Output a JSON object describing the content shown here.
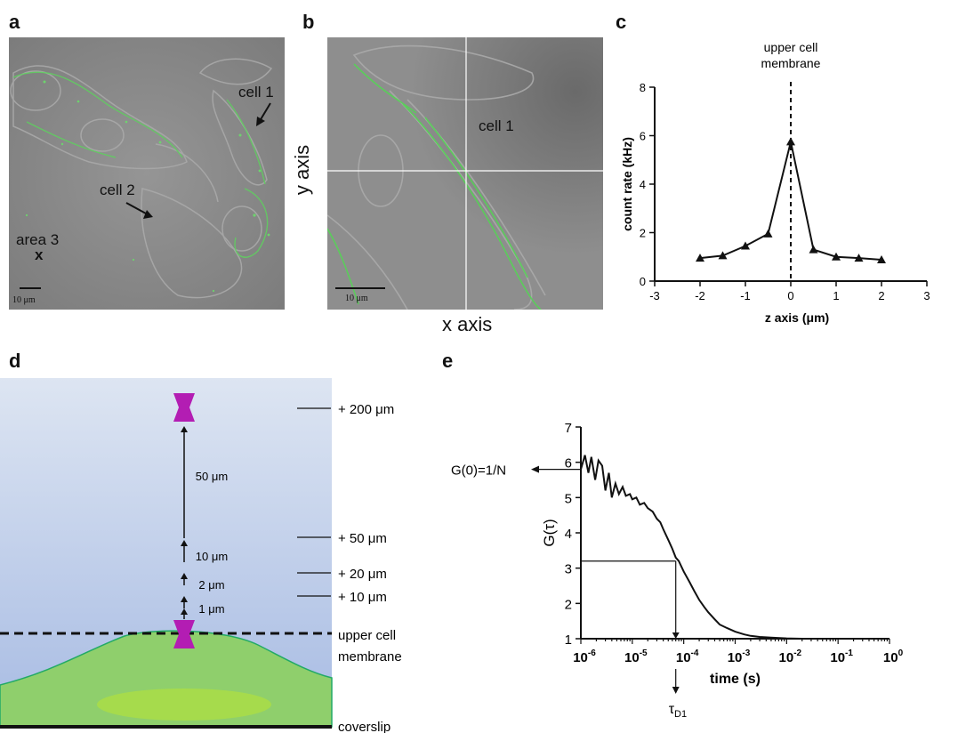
{
  "panels": {
    "a": {
      "letter": "a",
      "cell1_label": "cell 1",
      "cell2_label": "cell 2",
      "area3_label": "area 3",
      "area3_marker": "x",
      "scalebar_label": "10 μm"
    },
    "b": {
      "letter": "b",
      "cell1_label": "cell 1",
      "y_axis_label": "y axis",
      "x_axis_label": "x axis",
      "scalebar_label": "10 μm"
    },
    "c": {
      "letter": "c",
      "annotation_line1": "upper cell",
      "annotation_line2": "membrane"
    },
    "d": {
      "letter": "d",
      "levels": [
        "+ 200 μm",
        "+ 50 μm",
        "+ 20 μm",
        "+ 10 μm"
      ],
      "steps": [
        "50 μm",
        "10 μm",
        "2 μm",
        "1 μm"
      ],
      "membrane_line1": "upper cell",
      "membrane_line2": "membrane",
      "coverslip_label": "coverslip",
      "colors": {
        "probe": "#b31db3",
        "cell": "#8fcf6c",
        "nucleus": "#a6db4c",
        "sky_top": "#dde5f2",
        "sky_bottom": "#a7bbe3"
      }
    },
    "e": {
      "letter": "e",
      "g0_label": "G(0)=1/N",
      "tau_label": "τ",
      "tau_subscript": "D1"
    }
  },
  "chart_data": [
    {
      "type": "line",
      "panel": "c",
      "x": [
        -2,
        -1.5,
        -1,
        -0.5,
        0,
        0.5,
        1,
        1.5,
        2
      ],
      "y": [
        0.95,
        1.05,
        1.45,
        1.95,
        5.75,
        1.3,
        1.0,
        0.95,
        0.88
      ],
      "marker": "triangle",
      "xlabel": "z axis (μm)",
      "ylabel": "count rate  (kHz)",
      "xlim": [
        -3,
        3
      ],
      "ylim": [
        0,
        8
      ],
      "xticks": [
        "-3",
        "-2",
        "-1",
        "0",
        "1",
        "2",
        "3"
      ],
      "yticks": [
        "0",
        "2",
        "4",
        "6",
        "8"
      ],
      "reference_line_x": 0
    },
    {
      "type": "line",
      "panel": "e",
      "xscale": "log",
      "x": [
        1e-06,
        1.2e-06,
        1.4e-06,
        1.6e-06,
        1.9e-06,
        2.2e-06,
        2.6e-06,
        3e-06,
        3.5e-06,
        4e-06,
        4.7e-06,
        5.5e-06,
        6.5e-06,
        7.5e-06,
        9e-06,
        1e-05,
        1.2e-05,
        1.4e-05,
        1.7e-05,
        2e-05,
        2.5e-05,
        3e-05,
        3.5e-05,
        4e-05,
        5e-05,
        6e-05,
        7e-05,
        8e-05,
        0.0001,
        0.00013,
        0.00016,
        0.0002,
        0.00025,
        0.0003,
        0.0004,
        0.0005,
        0.0007,
        0.001,
        0.0015,
        0.002,
        0.003,
        0.005,
        0.01,
        0.02,
        0.05,
        0.1,
        1
      ],
      "y": [
        5.8,
        6.2,
        5.7,
        6.15,
        5.5,
        6.05,
        5.9,
        5.2,
        5.7,
        5.0,
        5.4,
        5.1,
        5.3,
        5.05,
        5.1,
        4.95,
        5.0,
        4.8,
        4.85,
        4.7,
        4.6,
        4.4,
        4.3,
        4.1,
        3.8,
        3.55,
        3.3,
        3.2,
        2.9,
        2.6,
        2.35,
        2.1,
        1.9,
        1.75,
        1.55,
        1.4,
        1.3,
        1.2,
        1.12,
        1.08,
        1.05,
        1.03,
        1.01,
        1.0,
        1.0,
        1.0,
        1.0
      ],
      "xlabel": "time (s)",
      "ylabel": "G(τ)",
      "xlim": [
        1e-06,
        1
      ],
      "ylim": [
        1,
        7
      ],
      "xtick_bases": [
        "10",
        "10",
        "10",
        "10",
        "10",
        "10",
        "10"
      ],
      "xtick_exponents": [
        "-6",
        "-5",
        "-4",
        "-3",
        "-2",
        "-1",
        "0"
      ],
      "yticks": [
        "1",
        "2",
        "3",
        "4",
        "5",
        "6",
        "7"
      ],
      "tau_d1_x": 7e-05,
      "tau_d1_y": 3.2
    }
  ]
}
